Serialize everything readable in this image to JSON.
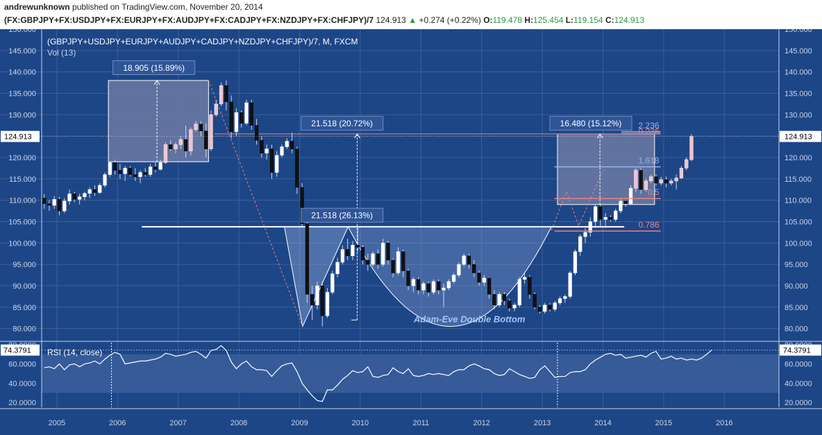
{
  "header": {
    "author": "andrewunknown",
    "published_text": "published on TradingView.com, November 20, 2014",
    "symbol": "(FX:GBPJPY+FX:USDJPY+FX:EURJPY+FX:AUDJPY+FX:CADJPY+FX:NZDJPY+FX:CHFJPY)/7",
    "last": "124.913",
    "change": "+0.274 (+0.22%)",
    "o_label": "O:",
    "o": "119.478",
    "h_label": "H:",
    "h": "125.454",
    "l_label": "L:",
    "l": "119.154",
    "c_label": "C:",
    "c": "124.913"
  },
  "colors": {
    "background": "#1d4687",
    "grid": "#3d5f98",
    "up_candle": "#ffffff",
    "down_candle": "#111111",
    "pink_candle": "#f4c0cc",
    "range_box": "#6b7aa5",
    "fib_pink": "#f08080",
    "fib_blue": "#9ab4e8",
    "rsi_band": "#3a5d9a",
    "rsi_line": "#ffffff"
  },
  "chart_data": {
    "type": "candlestick",
    "title": "(GBPJPY+USDJPY+EURJPY+AUDJPY+CADJPY+NZDJPY+CHFJPY)/7, M, FXCM",
    "volume_label": "Vol (13)",
    "x_tick_labels": [
      "2005",
      "2006",
      "2007",
      "2008",
      "2009",
      "2010",
      "2011",
      "2012",
      "2013",
      "2014",
      "2015",
      "2016"
    ],
    "x_range": [
      2004.75,
      2016.9
    ],
    "y_range": [
      77.5,
      150
    ],
    "y_ticks": [
      "80.000",
      "85.000",
      "90.000",
      "95.000",
      "100.000",
      "105.000",
      "110.000",
      "115.000",
      "120.000",
      "125.000",
      "130.000",
      "135.000",
      "140.000",
      "145.000",
      "150.000"
    ],
    "last_price_label": "124.913",
    "last_price": 124.913,
    "annotations": [
      {
        "text": "18.905 (15.89%)",
        "x": 2006.6,
        "y": 141
      },
      {
        "text": "21.518 (20.72%)",
        "x": 2009.7,
        "y": 128
      },
      {
        "text": "21.518 (26.13%)",
        "x": 2009.7,
        "y": 106.5
      },
      {
        "text": "16.480 (15.12%)",
        "x": 2013.8,
        "y": 128
      },
      {
        "text": "Adam-Eve Double Bottom",
        "x": 2011.8,
        "y": 81.5
      }
    ],
    "range_boxes": [
      {
        "x0": 2005.85,
        "x1": 2007.5,
        "y0": 119,
        "y1": 138
      },
      {
        "x0": 2013.25,
        "x1": 2014.85,
        "y0": 109,
        "y1": 125.5
      }
    ],
    "horizontal_lines": [
      {
        "y": 125.5,
        "x0": 2007.6,
        "x1": 2014.95,
        "color": "#f08080"
      },
      {
        "y": 103.8,
        "x0": 2006.4,
        "x1": 2014.35,
        "color": "#ffffff"
      }
    ],
    "fib_levels": [
      {
        "label": "2.236",
        "y": 126.0,
        "color": "#9ab4e8"
      },
      {
        "label": "0.236",
        "y": 125.6,
        "color": "#f08080"
      },
      {
        "label": "1.618",
        "y": 117.8,
        "color": "#9ab4e8"
      },
      {
        "label": "0.5",
        "y": 110.4,
        "color": "#f08080"
      },
      {
        "label": "0.786",
        "y": 102.8,
        "color": "#f08080"
      }
    ],
    "candles": [
      {
        "o": 110.5,
        "h": 111.5,
        "l": 108.0,
        "c": 109.2
      },
      {
        "o": 109.2,
        "h": 110.0,
        "l": 107.5,
        "c": 108.8
      },
      {
        "o": 108.8,
        "h": 111.0,
        "l": 108.0,
        "c": 110.2
      },
      {
        "o": 110.2,
        "h": 110.8,
        "l": 106.5,
        "c": 107.5
      },
      {
        "o": 107.5,
        "h": 110.5,
        "l": 107.0,
        "c": 109.8
      },
      {
        "o": 109.8,
        "h": 112.5,
        "l": 109.0,
        "c": 111.5
      },
      {
        "o": 111.5,
        "h": 112.0,
        "l": 109.5,
        "c": 110.2
      },
      {
        "o": 110.2,
        "h": 111.5,
        "l": 109.0,
        "c": 110.8
      },
      {
        "o": 110.8,
        "h": 112.0,
        "l": 110.0,
        "c": 111.6
      },
      {
        "o": 111.6,
        "h": 113.0,
        "l": 110.5,
        "c": 112.5
      },
      {
        "o": 112.5,
        "h": 113.5,
        "l": 111.0,
        "c": 111.8
      },
      {
        "o": 111.8,
        "h": 114.0,
        "l": 111.5,
        "c": 113.5
      },
      {
        "o": 113.5,
        "h": 116.5,
        "l": 113.0,
        "c": 116.0
      },
      {
        "o": 116.0,
        "h": 119.0,
        "l": 115.5,
        "c": 118.8
      },
      {
        "o": 118.8,
        "h": 119.5,
        "l": 116.0,
        "c": 117.0
      },
      {
        "o": 117.0,
        "h": 118.5,
        "l": 115.0,
        "c": 116.2
      },
      {
        "o": 116.2,
        "h": 118.0,
        "l": 114.5,
        "c": 117.5
      },
      {
        "o": 117.5,
        "h": 118.0,
        "l": 115.5,
        "c": 116.0
      },
      {
        "o": 116.0,
        "h": 117.5,
        "l": 114.5,
        "c": 115.5
      },
      {
        "o": 115.5,
        "h": 117.0,
        "l": 114.0,
        "c": 116.5
      },
      {
        "o": 116.5,
        "h": 117.5,
        "l": 115.5,
        "c": 116.0
      },
      {
        "o": 116.0,
        "h": 118.5,
        "l": 115.5,
        "c": 117.8
      },
      {
        "o": 117.8,
        "h": 119.0,
        "l": 116.5,
        "c": 117.2
      },
      {
        "o": 117.2,
        "h": 119.5,
        "l": 117.0,
        "c": 118.8
      },
      {
        "o": 118.8,
        "h": 123.5,
        "l": 118.5,
        "c": 123.0
      },
      {
        "o": 123.0,
        "h": 124.0,
        "l": 121.5,
        "c": 122.0
      },
      {
        "o": 122.0,
        "h": 123.5,
        "l": 121.0,
        "c": 123.0
      },
      {
        "o": 123.0,
        "h": 125.0,
        "l": 122.0,
        "c": 124.2
      },
      {
        "o": 124.2,
        "h": 127.5,
        "l": 120.0,
        "c": 121.5
      },
      {
        "o": 121.5,
        "h": 127.0,
        "l": 120.5,
        "c": 126.5
      },
      {
        "o": 126.5,
        "h": 128.5,
        "l": 126.0,
        "c": 127.8
      },
      {
        "o": 127.8,
        "h": 128.5,
        "l": 125.0,
        "c": 126.2
      },
      {
        "o": 126.2,
        "h": 128.0,
        "l": 120.0,
        "c": 122.0
      },
      {
        "o": 122.0,
        "h": 131.0,
        "l": 121.5,
        "c": 130.0
      },
      {
        "o": 130.0,
        "h": 133.5,
        "l": 129.5,
        "c": 132.5
      },
      {
        "o": 132.5,
        "h": 137.5,
        "l": 132.0,
        "c": 136.8
      },
      {
        "o": 136.8,
        "h": 138.0,
        "l": 131.0,
        "c": 133.0
      },
      {
        "o": 133.0,
        "h": 134.5,
        "l": 124.5,
        "c": 126.0
      },
      {
        "o": 126.0,
        "h": 131.5,
        "l": 125.0,
        "c": 130.5
      },
      {
        "o": 130.5,
        "h": 131.0,
        "l": 127.0,
        "c": 128.0
      },
      {
        "o": 128.0,
        "h": 133.5,
        "l": 127.5,
        "c": 132.8
      },
      {
        "o": 132.8,
        "h": 133.5,
        "l": 126.5,
        "c": 127.5
      },
      {
        "o": 127.5,
        "h": 129.0,
        "l": 123.0,
        "c": 124.0
      },
      {
        "o": 124.0,
        "h": 125.0,
        "l": 120.0,
        "c": 121.0
      },
      {
        "o": 121.0,
        "h": 123.0,
        "l": 119.5,
        "c": 122.0
      },
      {
        "o": 122.0,
        "h": 123.0,
        "l": 115.0,
        "c": 116.5
      },
      {
        "o": 116.5,
        "h": 121.5,
        "l": 115.5,
        "c": 120.5
      },
      {
        "o": 120.5,
        "h": 123.0,
        "l": 120.0,
        "c": 122.5
      },
      {
        "o": 122.5,
        "h": 124.5,
        "l": 122.0,
        "c": 123.8
      },
      {
        "o": 123.8,
        "h": 125.8,
        "l": 121.0,
        "c": 122.0
      },
      {
        "o": 122.0,
        "h": 122.5,
        "l": 111.5,
        "c": 113.0
      },
      {
        "o": 113.0,
        "h": 114.0,
        "l": 103.5,
        "c": 104.5
      },
      {
        "o": 104.5,
        "h": 105.0,
        "l": 86.0,
        "c": 88.0
      },
      {
        "o": 88.0,
        "h": 90.0,
        "l": 82.0,
        "c": 85.5
      },
      {
        "o": 85.5,
        "h": 91.0,
        "l": 84.5,
        "c": 90.0
      },
      {
        "o": 90.0,
        "h": 91.0,
        "l": 80.5,
        "c": 83.0
      },
      {
        "o": 83.0,
        "h": 89.5,
        "l": 82.5,
        "c": 88.5
      },
      {
        "o": 88.5,
        "h": 93.5,
        "l": 88.0,
        "c": 92.8
      },
      {
        "o": 92.8,
        "h": 96.5,
        "l": 92.0,
        "c": 95.5
      },
      {
        "o": 95.5,
        "h": 99.5,
        "l": 95.0,
        "c": 98.5
      },
      {
        "o": 98.5,
        "h": 101.0,
        "l": 96.0,
        "c": 97.0
      },
      {
        "o": 97.0,
        "h": 100.5,
        "l": 96.0,
        "c": 99.5
      },
      {
        "o": 99.5,
        "h": 104.0,
        "l": 98.0,
        "c": 99.0
      },
      {
        "o": 99.0,
        "h": 99.5,
        "l": 95.0,
        "c": 96.0
      },
      {
        "o": 96.0,
        "h": 97.5,
        "l": 93.5,
        "c": 95.0
      },
      {
        "o": 95.0,
        "h": 98.0,
        "l": 94.5,
        "c": 97.5
      },
      {
        "o": 97.5,
        "h": 98.5,
        "l": 94.0,
        "c": 95.0
      },
      {
        "o": 95.0,
        "h": 101.0,
        "l": 94.5,
        "c": 100.0
      },
      {
        "o": 100.0,
        "h": 100.5,
        "l": 95.0,
        "c": 96.0
      },
      {
        "o": 96.0,
        "h": 96.5,
        "l": 92.0,
        "c": 93.0
      },
      {
        "o": 93.0,
        "h": 99.0,
        "l": 92.5,
        "c": 98.0
      },
      {
        "o": 98.0,
        "h": 98.5,
        "l": 92.0,
        "c": 93.5
      },
      {
        "o": 93.5,
        "h": 94.0,
        "l": 89.0,
        "c": 90.0
      },
      {
        "o": 90.0,
        "h": 92.0,
        "l": 88.5,
        "c": 91.5
      },
      {
        "o": 91.5,
        "h": 92.0,
        "l": 88.0,
        "c": 89.0
      },
      {
        "o": 89.0,
        "h": 91.0,
        "l": 88.0,
        "c": 90.5
      },
      {
        "o": 90.5,
        "h": 91.0,
        "l": 87.5,
        "c": 88.5
      },
      {
        "o": 88.5,
        "h": 91.5,
        "l": 88.0,
        "c": 91.0
      },
      {
        "o": 91.0,
        "h": 91.5,
        "l": 88.0,
        "c": 89.0
      },
      {
        "o": 89.0,
        "h": 90.5,
        "l": 85.0,
        "c": 89.5
      },
      {
        "o": 89.5,
        "h": 91.5,
        "l": 89.0,
        "c": 91.0
      },
      {
        "o": 91.0,
        "h": 93.0,
        "l": 90.5,
        "c": 92.5
      },
      {
        "o": 92.5,
        "h": 95.5,
        "l": 92.0,
        "c": 95.0
      },
      {
        "o": 95.0,
        "h": 97.5,
        "l": 94.5,
        "c": 97.0
      },
      {
        "o": 97.0,
        "h": 97.5,
        "l": 94.0,
        "c": 95.0
      },
      {
        "o": 95.0,
        "h": 96.0,
        "l": 92.0,
        "c": 93.0
      },
      {
        "o": 93.0,
        "h": 93.5,
        "l": 90.0,
        "c": 90.8
      },
      {
        "o": 90.8,
        "h": 92.5,
        "l": 90.0,
        "c": 91.8
      },
      {
        "o": 91.8,
        "h": 92.0,
        "l": 87.0,
        "c": 88.0
      },
      {
        "o": 88.0,
        "h": 89.0,
        "l": 84.5,
        "c": 85.5
      },
      {
        "o": 85.5,
        "h": 88.5,
        "l": 85.0,
        "c": 88.0
      },
      {
        "o": 88.0,
        "h": 88.5,
        "l": 85.5,
        "c": 86.5
      },
      {
        "o": 86.5,
        "h": 87.0,
        "l": 84.0,
        "c": 84.8
      },
      {
        "o": 84.8,
        "h": 86.0,
        "l": 84.0,
        "c": 85.5
      },
      {
        "o": 85.5,
        "h": 92.0,
        "l": 85.0,
        "c": 91.5
      },
      {
        "o": 91.5,
        "h": 93.0,
        "l": 90.5,
        "c": 92.0
      },
      {
        "o": 92.0,
        "h": 92.5,
        "l": 87.0,
        "c": 88.0
      },
      {
        "o": 88.0,
        "h": 88.5,
        "l": 84.5,
        "c": 85.0
      },
      {
        "o": 85.0,
        "h": 85.5,
        "l": 83.5,
        "c": 84.0
      },
      {
        "o": 84.0,
        "h": 86.0,
        "l": 83.5,
        "c": 85.5
      },
      {
        "o": 85.5,
        "h": 86.0,
        "l": 84.0,
        "c": 84.5
      },
      {
        "o": 84.5,
        "h": 86.5,
        "l": 84.0,
        "c": 86.0
      },
      {
        "o": 86.0,
        "h": 87.5,
        "l": 85.5,
        "c": 87.0
      },
      {
        "o": 87.0,
        "h": 88.0,
        "l": 86.0,
        "c": 87.5
      },
      {
        "o": 87.5,
        "h": 93.5,
        "l": 87.0,
        "c": 93.0
      },
      {
        "o": 93.0,
        "h": 98.5,
        "l": 92.5,
        "c": 98.0
      },
      {
        "o": 98.0,
        "h": 102.0,
        "l": 97.0,
        "c": 101.5
      },
      {
        "o": 101.5,
        "h": 103.5,
        "l": 100.0,
        "c": 102.5
      },
      {
        "o": 102.5,
        "h": 106.0,
        "l": 101.5,
        "c": 105.0
      },
      {
        "o": 105.0,
        "h": 109.0,
        "l": 103.5,
        "c": 108.5
      },
      {
        "o": 108.5,
        "h": 109.0,
        "l": 104.0,
        "c": 105.5
      },
      {
        "o": 105.5,
        "h": 107.0,
        "l": 103.5,
        "c": 106.0
      },
      {
        "o": 106.0,
        "h": 106.5,
        "l": 105.0,
        "c": 105.5
      },
      {
        "o": 105.5,
        "h": 108.0,
        "l": 105.0,
        "c": 107.5
      },
      {
        "o": 107.5,
        "h": 110.5,
        "l": 107.0,
        "c": 109.8
      },
      {
        "o": 109.8,
        "h": 110.0,
        "l": 108.5,
        "c": 109.2
      },
      {
        "o": 109.2,
        "h": 113.5,
        "l": 109.0,
        "c": 112.8
      },
      {
        "o": 112.8,
        "h": 117.5,
        "l": 112.0,
        "c": 117.0
      },
      {
        "o": 117.0,
        "h": 117.5,
        "l": 111.5,
        "c": 112.5
      },
      {
        "o": 112.5,
        "h": 115.0,
        "l": 112.0,
        "c": 114.5
      },
      {
        "o": 114.5,
        "h": 116.0,
        "l": 114.0,
        "c": 115.5
      },
      {
        "o": 115.5,
        "h": 116.0,
        "l": 113.5,
        "c": 114.0
      },
      {
        "o": 114.0,
        "h": 115.5,
        "l": 113.5,
        "c": 114.8
      },
      {
        "o": 114.8,
        "h": 115.5,
        "l": 113.0,
        "c": 114.0
      },
      {
        "o": 114.0,
        "h": 115.0,
        "l": 113.5,
        "c": 114.5
      },
      {
        "o": 114.5,
        "h": 116.0,
        "l": 112.5,
        "c": 115.2
      },
      {
        "o": 115.2,
        "h": 118.0,
        "l": 115.0,
        "c": 117.5
      },
      {
        "o": 117.5,
        "h": 120.0,
        "l": 117.0,
        "c": 119.5
      },
      {
        "o": 119.478,
        "h": 125.454,
        "l": 119.154,
        "c": 124.913
      }
    ],
    "rsi": {
      "label": "RSI (14, close)",
      "last_label": "74.3791",
      "last": 74.3791,
      "y_range": [
        15,
        82
      ],
      "y_ticks": [
        "20.0000",
        "40.0000",
        "60.0000",
        "80.0000"
      ],
      "band": [
        30,
        70
      ],
      "values": [
        56,
        57,
        55,
        60,
        54,
        59,
        60,
        57,
        60,
        61,
        63,
        60,
        65,
        69,
        72,
        70,
        60,
        61,
        62,
        63,
        63,
        64,
        65,
        67,
        71,
        70,
        68,
        69,
        70,
        72,
        73,
        70,
        66,
        74,
        75,
        79,
        74,
        62,
        55,
        60,
        63,
        57,
        54,
        54,
        53,
        47,
        53,
        58,
        60,
        61,
        52,
        40,
        33,
        27,
        22,
        21,
        33,
        33,
        38,
        44,
        48,
        53,
        51,
        52,
        57,
        47,
        46,
        48,
        49,
        56,
        52,
        50,
        55,
        48,
        47,
        48,
        50,
        49,
        50,
        49,
        48,
        52,
        54,
        54,
        58,
        60,
        58,
        55,
        54,
        50,
        48,
        49,
        55,
        52,
        49,
        47,
        45,
        46,
        54,
        58,
        52,
        46,
        47,
        47,
        51,
        52,
        52,
        54,
        60,
        64,
        67,
        70,
        71,
        69,
        70,
        66,
        67,
        68,
        69,
        67,
        71,
        73,
        65,
        66,
        68,
        65,
        66,
        64,
        65,
        64,
        66,
        70,
        74.4
      ]
    }
  }
}
